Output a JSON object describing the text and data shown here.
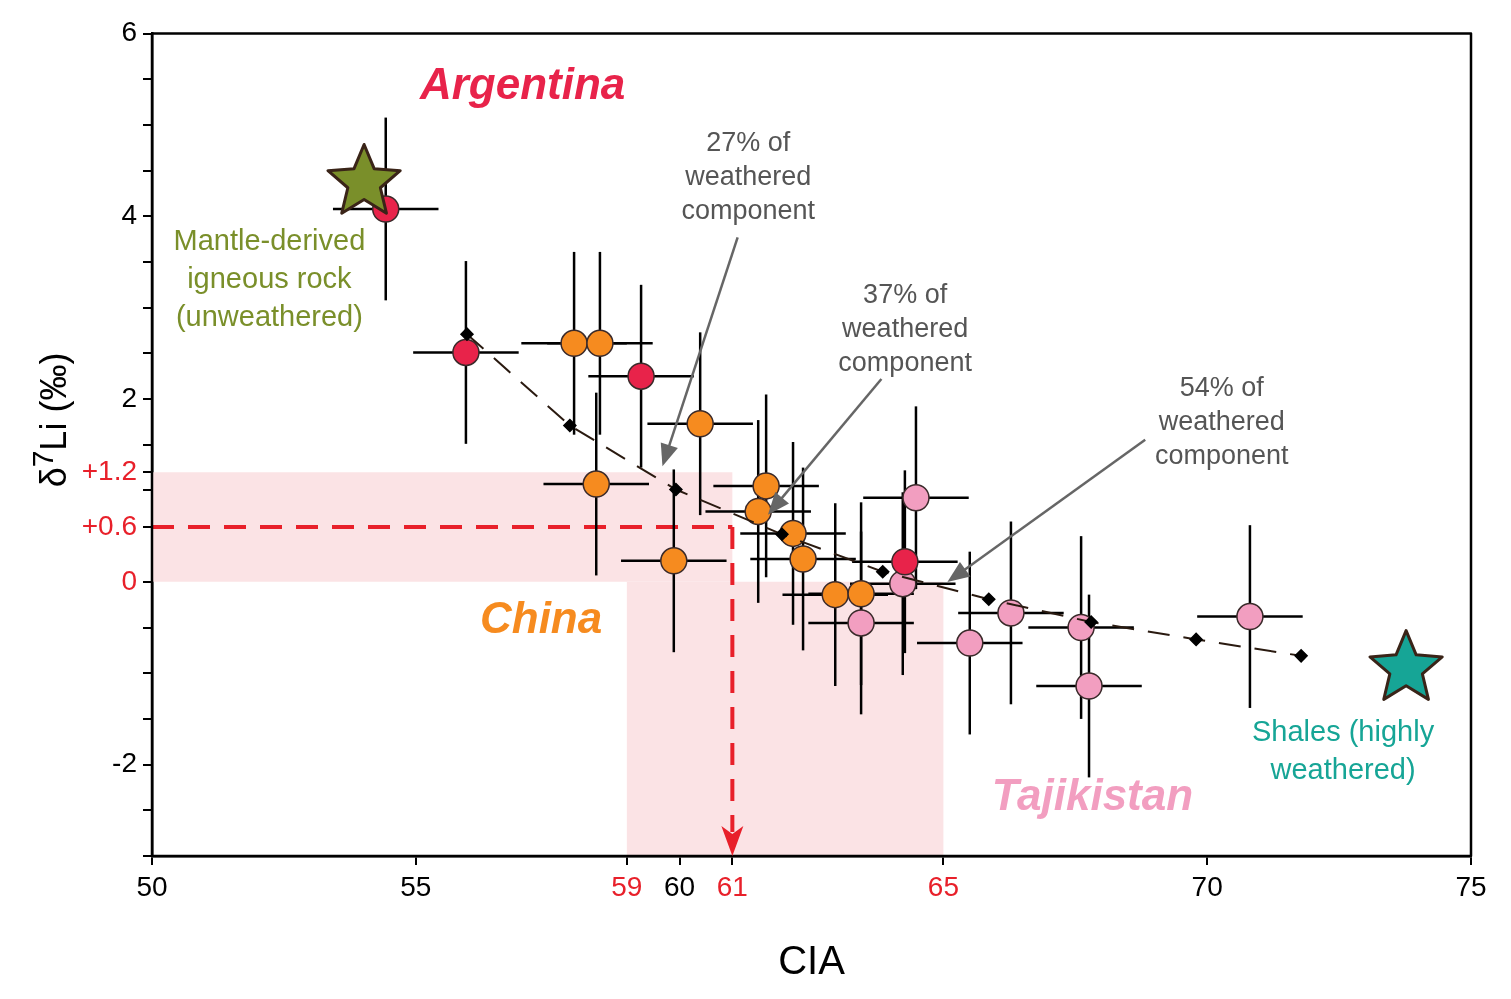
{
  "chart_data": {
    "type": "scatter",
    "xlabel": "CIA",
    "ylabel": "δ$^{7}$Li (‰)",
    "xlim": [
      50,
      75
    ],
    "ylim": [
      -3,
      6
    ],
    "xticks": [
      50,
      55,
      59,
      60,
      61,
      65,
      70,
      75
    ],
    "yticks": [
      6,
      {
        "value": 5.5,
        "label": null
      },
      {
        "value": 5,
        "label": null
      },
      {
        "value": 4.5,
        "label": null
      },
      4,
      {
        "value": 3.5,
        "label": null
      },
      {
        "value": 3,
        "label": null
      },
      {
        "value": 2.5,
        "label": null
      },
      2,
      {
        "value": 1.5,
        "label": null
      },
      {
        "value": 1.2,
        "label": "+1.2"
      },
      {
        "value": 1,
        "label": null
      },
      {
        "value": 0.6,
        "label": "+0.6"
      },
      0,
      {
        "value": -0.5,
        "label": null
      },
      {
        "value": -1,
        "label": null
      },
      {
        "value": -1.5,
        "label": null
      },
      -2,
      {
        "value": -2.5,
        "label": null
      },
      {
        "value": -3,
        "label": null
      }
    ],
    "grid": false,
    "legend": false,
    "series": [
      {
        "name": "Argentina",
        "color": "#e8234a",
        "marker": "circle",
        "x": [
          54.43,
          55.95,
          59.27,
          64.27
        ],
        "values": [
          4.08,
          2.51,
          2.25,
          0.22
        ],
        "errors": [
          1,
          1,
          1,
          1
        ],
        "xerrors": [
          1,
          1,
          1,
          1
        ]
      },
      {
        "name": "China",
        "color": "#f68b1f",
        "marker": "circle",
        "x": [
          58.0,
          58.49,
          60.39,
          58.42,
          59.89,
          61.64,
          61.49,
          62.15,
          62.34,
          62.95,
          63.44
        ],
        "values": [
          2.61,
          2.61,
          1.73,
          1.07,
          0.23,
          1.05,
          0.77,
          0.53,
          0.25,
          -0.14,
          -0.13
        ],
        "errors": [
          1,
          1,
          1,
          1,
          1,
          1,
          1,
          1,
          1,
          1,
          1
        ],
        "xerrors": [
          1,
          1,
          1,
          1,
          1,
          1,
          1,
          1,
          1,
          1,
          1
        ]
      },
      {
        "name": "Tajikistan",
        "color": "#f29ec0",
        "marker": "circle",
        "x": [
          64.48,
          64.23,
          63.44,
          65.5,
          66.28,
          67.61,
          67.76,
          70.81
        ],
        "values": [
          0.92,
          -0.02,
          -0.45,
          -0.67,
          -0.34,
          -0.5,
          -1.14,
          -0.38
        ],
        "errors": [
          1,
          1,
          1,
          1,
          1,
          1,
          1,
          1
        ],
        "xerrors": [
          1,
          1,
          1,
          1,
          1,
          1,
          1,
          1
        ]
      },
      {
        "name": "Mantle-derived igneous rock (unweathered)",
        "color": "#7a8f2a",
        "marker": "star",
        "x": [
          54.02
        ],
        "values": [
          4.37
        ]
      },
      {
        "name": "Shales (highly weathered)",
        "color": "#16a596",
        "marker": "star",
        "x": [
          73.77
        ],
        "values": [
          -0.95
        ]
      },
      {
        "type": "line",
        "color": "#2a1a10",
        "marker": "diamond",
        "line_style": "dashed",
        "x": [
          55.97,
          57.92,
          59.93,
          61.94,
          63.85,
          65.86,
          67.8,
          69.79,
          71.78
        ],
        "values": [
          2.71,
          1.71,
          1.01,
          0.52,
          0.11,
          -0.19,
          -0.44,
          -0.63,
          -0.81
        ]
      }
    ],
    "ref_lines": [
      {
        "axis": "y",
        "value": 0.6,
        "color": "#e8202a",
        "line_style": "dashed"
      },
      {
        "axis": "x",
        "value": 61,
        "color": "#e8202a",
        "line_style": "dashed"
      }
    ],
    "bands": [
      {
        "axis": "y",
        "from": 0,
        "to": 1.2,
        "color": "#fbe3e5"
      },
      {
        "axis": "x",
        "from": 59,
        "to": 65,
        "color": "#fbe3e5"
      }
    ],
    "annotations": [
      "27% of weathered component",
      "37% of weathered component",
      "54% of weathered component"
    ]
  }
}
